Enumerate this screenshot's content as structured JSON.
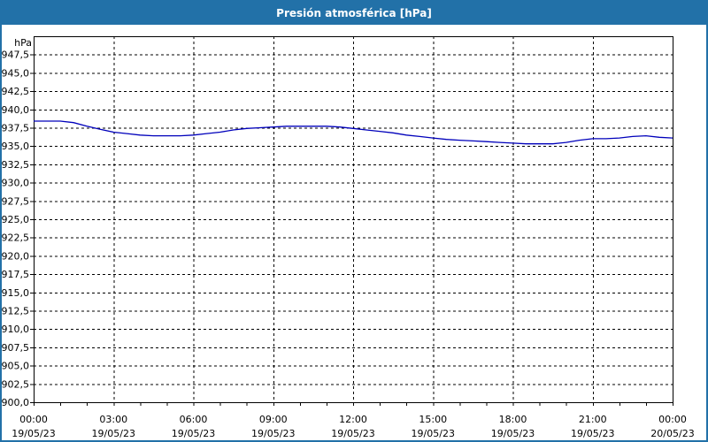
{
  "window": {
    "title": "Presión atmosférica [hPa]",
    "title_bar_color": "#2271a8",
    "border_color": "#2271a8",
    "background_color": "#ffffff"
  },
  "chart_data": {
    "type": "line",
    "title": "Presión atmosférica [hPa]",
    "grid": {
      "style": "dashed",
      "color": "#000000",
      "horizontal": true,
      "vertical": true
    },
    "legend": "none",
    "y_axis": {
      "unit": "hPa",
      "lim": [
        900,
        950
      ],
      "tick_step": 2.5,
      "ticks": [
        {
          "value": 900.0,
          "label": "900,0"
        },
        {
          "value": 902.5,
          "label": "902,5"
        },
        {
          "value": 905.0,
          "label": "905,0"
        },
        {
          "value": 907.5,
          "label": "907,5"
        },
        {
          "value": 910.0,
          "label": "910,0"
        },
        {
          "value": 912.5,
          "label": "912,5"
        },
        {
          "value": 915.0,
          "label": "915,0"
        },
        {
          "value": 917.5,
          "label": "917,5"
        },
        {
          "value": 920.0,
          "label": "920,0"
        },
        {
          "value": 922.5,
          "label": "922,5"
        },
        {
          "value": 925.0,
          "label": "925,0"
        },
        {
          "value": 927.5,
          "label": "927,5"
        },
        {
          "value": 930.0,
          "label": "930,0"
        },
        {
          "value": 932.5,
          "label": "932,5"
        },
        {
          "value": 935.0,
          "label": "935,0"
        },
        {
          "value": 937.5,
          "label": "937,5"
        },
        {
          "value": 940.0,
          "label": "940,0"
        },
        {
          "value": 942.5,
          "label": "942,5"
        },
        {
          "value": 945.0,
          "label": "945,0"
        },
        {
          "value": 947.5,
          "label": "947,5"
        }
      ]
    },
    "x_axis": {
      "lim_hours": [
        0,
        24
      ],
      "minor_tick_every_hours": 1,
      "major_ticks": [
        {
          "hour": 0,
          "time": "00:00",
          "date": "19/05/23"
        },
        {
          "hour": 3,
          "time": "03:00",
          "date": "19/05/23"
        },
        {
          "hour": 6,
          "time": "06:00",
          "date": "19/05/23"
        },
        {
          "hour": 9,
          "time": "09:00",
          "date": "19/05/23"
        },
        {
          "hour": 12,
          "time": "12:00",
          "date": "19/05/23"
        },
        {
          "hour": 15,
          "time": "15:00",
          "date": "19/05/23"
        },
        {
          "hour": 18,
          "time": "18:00",
          "date": "19/05/23"
        },
        {
          "hour": 21,
          "time": "21:00",
          "date": "19/05/23"
        },
        {
          "hour": 24,
          "time": "00:00",
          "date": "20/05/23"
        }
      ]
    },
    "series": [
      {
        "name": "Presión atmosférica",
        "color": "#0000bb",
        "x_hours": [
          0,
          0.5,
          1,
          1.5,
          2,
          2.5,
          3,
          3.5,
          4,
          4.5,
          5,
          5.5,
          6,
          6.5,
          7,
          7.5,
          8,
          8.5,
          9,
          9.5,
          10,
          10.5,
          11,
          11.5,
          12,
          12.5,
          13,
          13.5,
          14,
          14.5,
          15,
          15.5,
          16,
          16.5,
          17,
          17.5,
          18,
          18.5,
          19,
          19.5,
          20,
          20.5,
          21,
          21.5,
          22,
          22.5,
          23,
          23.5,
          24
        ],
        "values": [
          938.4,
          938.4,
          938.4,
          938.2,
          937.7,
          937.3,
          936.9,
          936.7,
          936.5,
          936.4,
          936.4,
          936.4,
          936.5,
          936.7,
          936.9,
          937.2,
          937.4,
          937.5,
          937.6,
          937.7,
          937.7,
          937.7,
          937.7,
          937.6,
          937.4,
          937.2,
          937.0,
          936.8,
          936.5,
          936.3,
          936.1,
          935.9,
          935.8,
          935.7,
          935.6,
          935.5,
          935.4,
          935.3,
          935.3,
          935.3,
          935.5,
          935.8,
          936.0,
          936.0,
          936.1,
          936.3,
          936.4,
          936.2,
          936.1
        ]
      }
    ]
  }
}
